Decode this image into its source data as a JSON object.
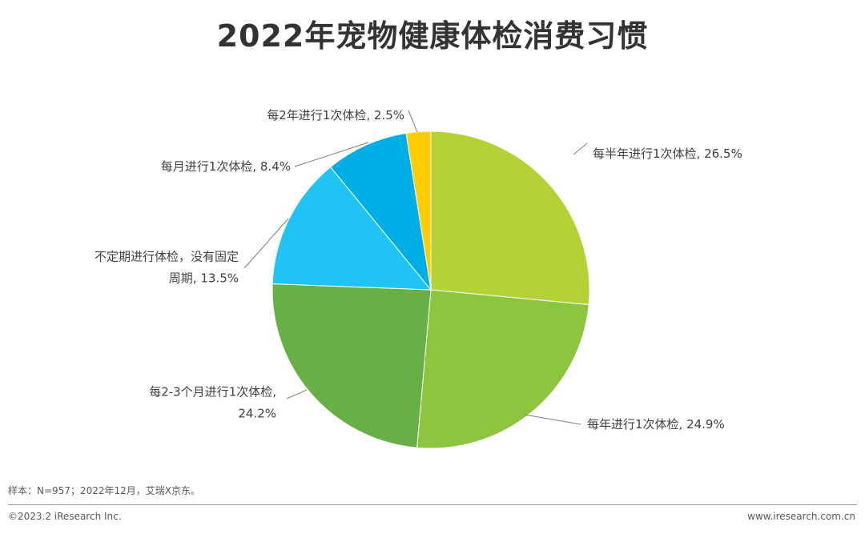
{
  "chart_data": {
    "type": "pie",
    "title": "2022年宠物健康体检消费习惯",
    "start_angle_deg": 0,
    "direction": "clockwise",
    "slices": [
      {
        "label_lines": [
          "每半年进行1次体检, 26.5%"
        ],
        "value": 26.5,
        "color": "#b2d235"
      },
      {
        "label_lines": [
          "每年进行1次体检, 24.9%"
        ],
        "value": 24.9,
        "color": "#8cc63f"
      },
      {
        "label_lines": [
          "每2-3个月进行1次体检,",
          "24.2%"
        ],
        "value": 24.2,
        "color": "#66b046"
      },
      {
        "label_lines": [
          "不定期进行体检，没有固定",
          "周期, 13.5%"
        ],
        "value": 13.5,
        "color": "#20c4f4"
      },
      {
        "label_lines": [
          "每月进行1次体检, 8.4%"
        ],
        "value": 8.4,
        "color": "#00aee6"
      },
      {
        "label_lines": [
          "每2年进行1次体检, 2.5%"
        ],
        "value": 2.5,
        "color": "#ffcc00"
      }
    ]
  },
  "footer": {
    "sample_note": "样本：N=957；2022年12月，艾瑞X京东。",
    "copyright": "©2023.2 iResearch Inc.",
    "website": "www.iresearch.com.cn"
  }
}
